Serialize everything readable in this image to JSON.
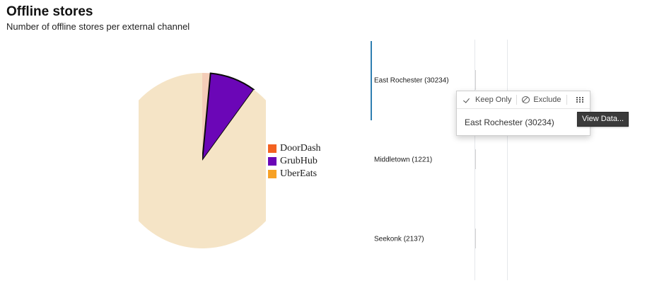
{
  "header": {
    "title": "Offline stores",
    "subtitle": "Number of offline stores per external channel"
  },
  "pie": {
    "slices": [
      {
        "name": "DoorDash",
        "value": 1.5,
        "color": "#f4cdb8"
      },
      {
        "name": "GrubHub",
        "value": 8.5,
        "color": "#6b06b7"
      },
      {
        "name": "UberEats",
        "value": 90.0,
        "color": "#f5e4c6"
      }
    ],
    "legend": [
      {
        "label": "DoorDash",
        "color": "#f36221"
      },
      {
        "label": "GrubHub",
        "color": "#6b06b7"
      },
      {
        "label": "UberEats",
        "color": "#f7a125"
      }
    ]
  },
  "bars": [
    {
      "label": "East Rochester (30234)",
      "value": 30234,
      "selected": true
    },
    {
      "label": "Middletown (1221)",
      "value": 1221,
      "selected": false
    },
    {
      "label": "Seekonk (2137)",
      "value": 2137,
      "selected": false
    }
  ],
  "context_menu": {
    "keep_only": "Keep Only",
    "exclude": "Exclude",
    "view_data_icon": "table-grid-icon",
    "selection": "East Rochester (30234)"
  },
  "tooltip": {
    "text": "View Data..."
  }
}
